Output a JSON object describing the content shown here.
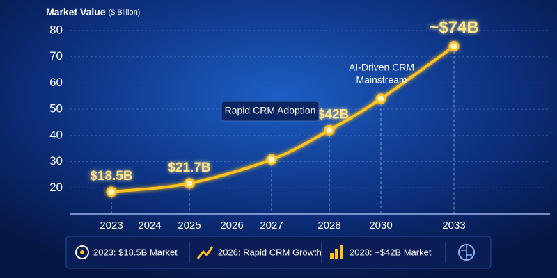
{
  "chart_data": {
    "type": "line",
    "y_axis_title": "Market Value",
    "y_axis_unit": "($ Billion)",
    "xticks": [
      2023,
      2024,
      2025,
      2026,
      2027,
      2028,
      2030,
      2033
    ],
    "x": [
      2023,
      2025,
      2027,
      2028,
      2030,
      2033
    ],
    "values": [
      18.5,
      21.7,
      30.8,
      42,
      54,
      74
    ],
    "value_labels": [
      "$18.5B",
      "$21.7B",
      null,
      "~$42B",
      null,
      "~$74B"
    ],
    "color": "#ffc21a",
    "ylim": [
      10,
      80
    ],
    "yticks": [
      20,
      30,
      40,
      50,
      60,
      70,
      80
    ],
    "grid": true,
    "annotations": [
      "Rapid CRM Adoption",
      "AI-Driven CRM",
      "Mainstream"
    ],
    "highlights": [
      "2023: $18.5B Market",
      "2026: Rapid CRM Growth",
      "2028: ~$42B Market"
    ]
  }
}
